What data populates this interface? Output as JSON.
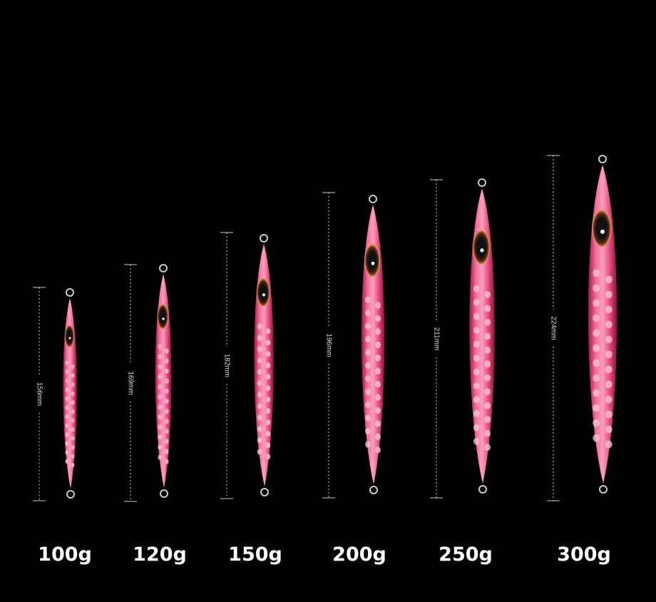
{
  "items": [
    {
      "length": "156mm",
      "weight": "100g"
    },
    {
      "length": "169mm",
      "weight": "120g"
    },
    {
      "length": "182mm",
      "weight": "150g"
    },
    {
      "length": "196mm",
      "weight": "200g"
    },
    {
      "length": "211mm",
      "weight": "250g"
    },
    {
      "length": "224mm",
      "weight": "300g"
    }
  ]
}
